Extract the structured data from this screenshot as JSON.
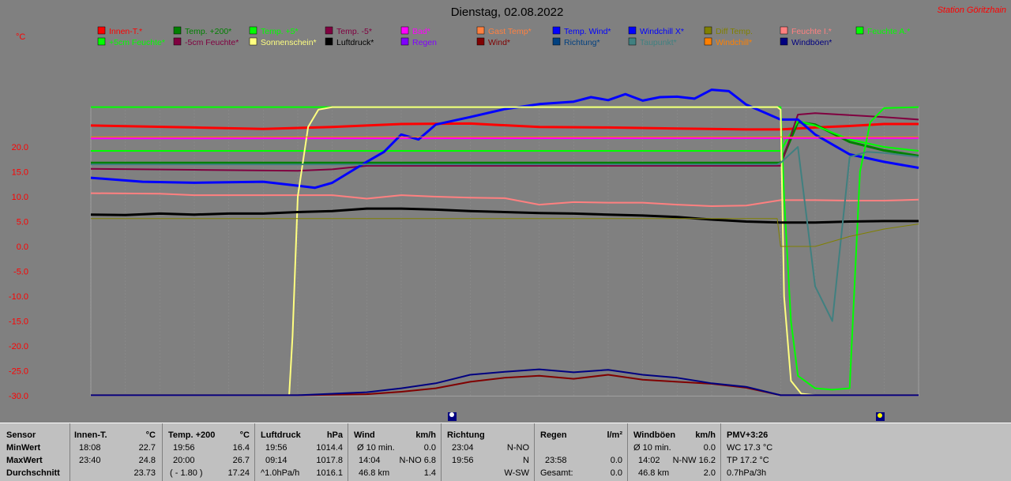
{
  "title": "Dienstag, 02.08.2022",
  "station": "Station Göritzhain",
  "y_unit": "°C",
  "colors": {
    "background": "#808080",
    "grid": "#a0a0a0",
    "panel": "#c0c0c0"
  },
  "legend": [
    {
      "label": "Innen-T.*",
      "color": "#ff0000"
    },
    {
      "label": "Temp. +200*",
      "color": "#008000"
    },
    {
      "label": "Temp. +5*",
      "color": "#00ff00"
    },
    {
      "label": "Temp. -5*",
      "color": "#800040"
    },
    {
      "label": "Bad*",
      "color": "#ff00ff"
    },
    {
      "label": "Gast Temp*",
      "color": "#ff8040"
    },
    {
      "label": "Temp. Wind*",
      "color": "#0000ff"
    },
    {
      "label": "Windchill X*",
      "color": "#0000ff"
    },
    {
      "label": "Diff Temp.",
      "color": "#808000"
    },
    {
      "label": "Feuchte I.*",
      "color": "#ff8080"
    },
    {
      "label": "Feuchte A.*",
      "color": "#00ff00"
    },
    {
      "label": "+5cm Feuchte*",
      "color": "#00ff00"
    },
    {
      "label": "-5cm Feuchte*",
      "color": "#800040"
    },
    {
      "label": "Sonnenschein*",
      "color": "#ffff80"
    },
    {
      "label": "Luftdruck*",
      "color": "#000000"
    },
    {
      "label": "Regen",
      "color": "#8000ff"
    },
    {
      "label": "Wind*",
      "color": "#800000"
    },
    {
      "label": "Richtung*",
      "color": "#004080"
    },
    {
      "label": "Taupunkt*",
      "color": "#408080"
    },
    {
      "label": "Windchill*",
      "color": "#ff8000"
    },
    {
      "label": "Windböen*",
      "color": "#000080"
    }
  ],
  "chart_data": {
    "type": "line",
    "title": "Dienstag, 02.08.2022",
    "ylabel": "°C",
    "ylim": [
      -30,
      28
    ],
    "y_ticks": [
      "20.0",
      "15.0",
      "10.0",
      "5.0",
      "0.0",
      "-5.0",
      "-10.0",
      "-15.0",
      "-20.0",
      "-25.0",
      "-30.0"
    ],
    "x_range_hours": [
      0,
      24
    ],
    "grid": true,
    "series": [
      {
        "name": "Innen-T.*",
        "color": "#ff0000",
        "width": 3,
        "x": [
          0,
          3,
          5,
          7,
          9,
          11,
          13,
          15,
          17,
          19,
          20,
          21,
          22,
          23,
          24
        ],
        "y": [
          24.3,
          23.9,
          23.6,
          24.0,
          24.6,
          24.7,
          24.0,
          23.9,
          23.7,
          23.5,
          23.5,
          23.9,
          24.2,
          24.6,
          24.6
        ]
      },
      {
        "name": "Temp. +200*",
        "color": "#008000",
        "width": 3,
        "x": [
          0,
          19.9,
          20,
          20.5,
          21,
          22,
          23,
          24
        ],
        "y": [
          16.8,
          16.8,
          16.8,
          25.0,
          24.5,
          21.0,
          19.3,
          18.2
        ]
      },
      {
        "name": "Temp. +5*",
        "color": "#00ff00",
        "width": 2,
        "x": [
          0,
          19.9,
          20,
          20.5,
          21,
          22,
          23,
          24
        ],
        "y": [
          19.2,
          19.2,
          19.2,
          25.2,
          24.3,
          21.5,
          20.0,
          19.2
        ]
      },
      {
        "name": "Temp. -5*",
        "color": "#800040",
        "width": 2,
        "x": [
          0,
          3,
          6,
          7,
          8,
          19.9,
          20,
          20.5,
          21,
          22,
          23,
          24
        ],
        "y": [
          15.6,
          15.4,
          15.2,
          15.5,
          16.2,
          16.2,
          16.2,
          26.5,
          26.8,
          26.4,
          26.0,
          25.5
        ]
      },
      {
        "name": "Bad*",
        "color": "#ff00ff",
        "width": 2,
        "x": [
          0,
          24
        ],
        "y": [
          21.7,
          21.8
        ]
      },
      {
        "name": "Temp. Wind*",
        "color": "#0000ff",
        "width": 3,
        "x": [
          0,
          1.5,
          3,
          5,
          6,
          6.5,
          7,
          8,
          8.5,
          9,
          9.5,
          10,
          11,
          12,
          13,
          14,
          14.5,
          15,
          15.5,
          16,
          16.5,
          17,
          17.5,
          18,
          18.5,
          19,
          19.5,
          20,
          20.5,
          21,
          22,
          23,
          24
        ],
        "y": [
          13.8,
          13.0,
          12.8,
          13.0,
          12.2,
          11.8,
          12.8,
          17,
          19,
          22.5,
          21.5,
          24.5,
          26,
          27.6,
          28.6,
          29.1,
          30.0,
          29.4,
          30.6,
          29.3,
          30,
          30.1,
          29.7,
          31.5,
          31.2,
          28.5,
          27.0,
          25.5,
          25.5,
          22.5,
          18.5,
          17,
          15.8
        ]
      },
      {
        "name": "Feuchte I.*",
        "color": "#ff8080",
        "width": 2,
        "x": [
          0,
          2,
          3,
          5,
          7,
          8,
          9,
          10,
          11,
          12,
          13,
          14,
          15,
          16,
          17,
          18,
          19,
          20,
          21,
          22,
          23,
          24
        ],
        "y": [
          10.7,
          10.6,
          10.3,
          10.3,
          10.3,
          9.6,
          10.3,
          10.0,
          9.8,
          9.7,
          8.4,
          8.9,
          8.8,
          8.8,
          8.4,
          8.1,
          8.2,
          9.3,
          9.3,
          9.2,
          9.2,
          9.4
        ]
      },
      {
        "name": "Feuchte A.*",
        "color": "#00ff00",
        "width": 2,
        "x": [
          0,
          19.9,
          20,
          20.1,
          20.3,
          20.5,
          21,
          21.5,
          22,
          22.3,
          22.6,
          23,
          24
        ],
        "y": [
          28,
          28,
          28,
          10,
          -15,
          -26,
          -28.5,
          -28.8,
          -28.5,
          15,
          25,
          27.8,
          28
        ]
      },
      {
        "name": "Sonnenschein*",
        "color": "#ffff80",
        "width": 2,
        "x": [
          0,
          5.75,
          5.85,
          6.0,
          6.3,
          6.6,
          7.0,
          19.9,
          20.0,
          20.1,
          20.3,
          20.6,
          21,
          24
        ],
        "y": [
          -29.9,
          -29.9,
          -18,
          10,
          24,
          27.5,
          28,
          28,
          27.5,
          -10,
          -27,
          -29.6,
          -29.9,
          -29.9
        ]
      },
      {
        "name": "Luftdruck*",
        "color": "#000000",
        "width": 3,
        "x": [
          0,
          1,
          2,
          3,
          4,
          5,
          6,
          7,
          8,
          9,
          10,
          11,
          12,
          13,
          14,
          15,
          16,
          17,
          18,
          19,
          20,
          21,
          22,
          23,
          24
        ],
        "y": [
          6.4,
          6.3,
          6.6,
          6.4,
          6.6,
          6.6,
          6.9,
          7.1,
          7.6,
          7.6,
          7.4,
          7.1,
          6.9,
          6.7,
          6.6,
          6.4,
          6.2,
          5.9,
          5.4,
          5.0,
          4.8,
          4.8,
          5.0,
          5.1,
          5.1
        ]
      },
      {
        "name": "Wind*",
        "color": "#800000",
        "width": 2,
        "x": [
          0,
          3,
          6,
          8,
          9,
          10,
          11,
          12,
          13,
          14,
          15,
          16,
          17,
          18,
          19,
          20,
          24
        ],
        "y": [
          -29.9,
          -29.9,
          -29.9,
          -29.7,
          -29.2,
          -28.5,
          -27.2,
          -26.4,
          -26.0,
          -26.6,
          -25.8,
          -26.8,
          -27.2,
          -27.6,
          -28.4,
          -29.9,
          -29.9
        ]
      },
      {
        "name": "Windböen*",
        "color": "#000080",
        "width": 2,
        "x": [
          0,
          3,
          6,
          8,
          9,
          10,
          11,
          12,
          13,
          14,
          15,
          16,
          17,
          18,
          19,
          20,
          24
        ],
        "y": [
          -29.9,
          -29.9,
          -29.9,
          -29.3,
          -28.5,
          -27.5,
          -25.8,
          -25.2,
          -24.7,
          -25.3,
          -24.8,
          -25.8,
          -26.4,
          -27.5,
          -28.2,
          -29.9,
          -29.9
        ]
      },
      {
        "name": "Taupunkt*",
        "color": "#408080",
        "width": 2,
        "x": [
          0,
          19.9,
          20,
          20.5,
          21,
          21.5,
          22,
          22.5,
          23,
          24
        ],
        "y": [
          16.5,
          16.5,
          16.8,
          20,
          -8,
          -15,
          18,
          19,
          18.8,
          18
        ]
      },
      {
        "name": "Windchill*",
        "color": "#ff8000",
        "width": 1,
        "x": [
          0,
          24
        ],
        "y": [
          22.0,
          22.0
        ]
      },
      {
        "name": "Diff Temp.",
        "color": "#808000",
        "width": 1,
        "x": [
          0,
          19.9,
          20,
          21,
          22,
          23,
          24
        ],
        "y": [
          5.6,
          5.6,
          0,
          0,
          2,
          3.5,
          4.5
        ]
      }
    ]
  },
  "table": {
    "headers": [
      "Sensor",
      "Innen-T.",
      "°C",
      "Temp. +200",
      "°C",
      "Luftdruck",
      "hPa",
      "Wind",
      "km/h",
      "Richtung",
      "Regen",
      "l/m²",
      "Windböen",
      "km/h",
      "PMV+3:26"
    ],
    "rows": [
      {
        "label": "MinWert",
        "innen_time": "18:08",
        "innen_val": "22.7",
        "temp_time": "19:56",
        "temp_val": "16.4",
        "druck_time": "19:56",
        "druck_val": "1014.4",
        "wind_a": "Ø 10 min.",
        "wind_val": "0.0",
        "richt_time": "23:04",
        "richt_val": "N-NO",
        "regen_time": "",
        "regen_val": "",
        "boen_a": "Ø 10 min.",
        "boen_val": "0.0",
        "pmv": "WC 17.3 °C"
      },
      {
        "label": "MaxWert",
        "innen_time": "23:40",
        "innen_val": "24.8",
        "temp_time": "20:00",
        "temp_val": "26.7",
        "druck_time": "09:14",
        "druck_val": "1017.8",
        "wind_a": "14:04",
        "wind_dir": "N-NO 6.8",
        "richt_time": "19:56",
        "richt_val": "N",
        "regen_time": "23:58",
        "regen_val": "0.0",
        "boen_a": "14:02",
        "boen_dir": "N-NW 16.2",
        "pmv": "TP 17.2 °C"
      },
      {
        "label": "Durchschnitt",
        "innen_time": "",
        "innen_val": "23.73",
        "temp_time": "( - 1.80 )",
        "temp_val": "17.24",
        "druck_time": "^1.0hPa/h",
        "druck_val": "1016.1",
        "wind_a": "46.8 km",
        "wind_val": "1.4",
        "richt_time": "",
        "richt_val": "W-SW",
        "regen_time": "Gesamt:",
        "regen_val": "0.0",
        "boen_a": "46.8 km",
        "boen_val": "2.0",
        "pmv": "0.7hPa/3h"
      }
    ]
  }
}
